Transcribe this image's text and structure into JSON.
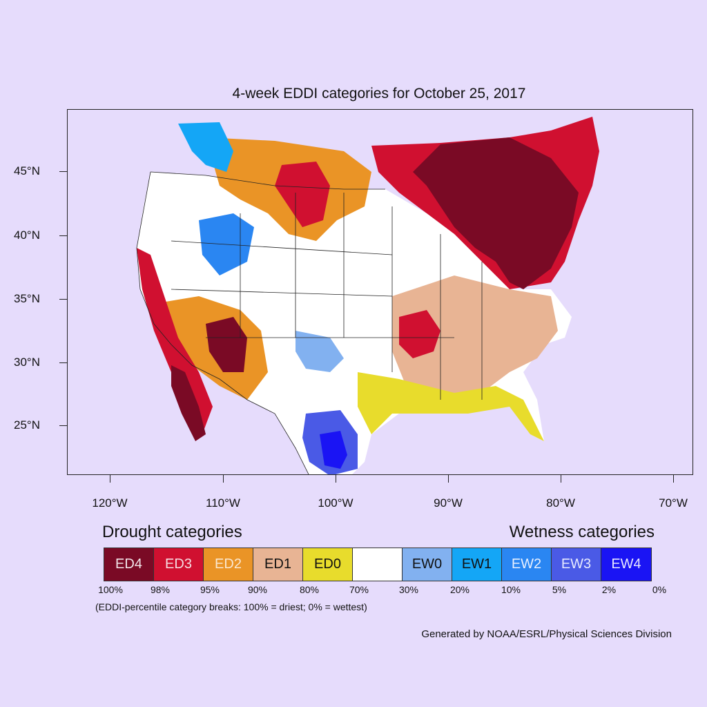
{
  "title": "4-week EDDI categories for October 25, 2017",
  "latitude_labels": [
    "45°N",
    "40°N",
    "35°N",
    "30°N",
    "25°N"
  ],
  "longitude_labels": [
    "120°W",
    "110°W",
    "100°W",
    "90°W",
    "80°W",
    "70°W"
  ],
  "legend": {
    "drought_heading": "Drought categories",
    "wetness_heading": "Wetness categories",
    "categories": [
      {
        "label": "ED4",
        "color": "#7a0a25",
        "text_color": "#f2e6ea"
      },
      {
        "label": "ED3",
        "color": "#d01030",
        "text_color": "#f6dde2"
      },
      {
        "label": "ED2",
        "color": "#ea9426",
        "text_color": "#fbe8d0"
      },
      {
        "label": "ED1",
        "color": "#e8b494",
        "text_color": "#111111"
      },
      {
        "label": "ED0",
        "color": "#e8dc2c",
        "text_color": "#111111"
      },
      {
        "label": "",
        "color": "#ffffff",
        "text_color": "#111111"
      },
      {
        "label": "EW0",
        "color": "#82b1f0",
        "text_color": "#111111"
      },
      {
        "label": "EW1",
        "color": "#14a6f6",
        "text_color": "#111111"
      },
      {
        "label": "EW2",
        "color": "#2a86f2",
        "text_color": "#e8f0ff"
      },
      {
        "label": "EW3",
        "color": "#4a5ae6",
        "text_color": "#e8ebff"
      },
      {
        "label": "EW4",
        "color": "#1a14f4",
        "text_color": "#e8e8ff"
      }
    ],
    "breaks": [
      "100%",
      "98%",
      "95%",
      "90%",
      "80%",
      "70%",
      "30%",
      "20%",
      "10%",
      "5%",
      "2%",
      "0%"
    ],
    "breaks_note": "(EDDI-percentile category breaks: 100% = driest; 0% = wettest)"
  },
  "credit": "Generated by NOAA/ESRL/Physical Sciences Division",
  "map_regions": [
    {
      "name": "northeast-us-great-lakes",
      "category": "ED4"
    },
    {
      "name": "southern-ontario-quebec",
      "category": "ED4"
    },
    {
      "name": "northern-plains",
      "category": "ED3"
    },
    {
      "name": "arizona-new-mexico-border",
      "category": "ED4"
    },
    {
      "name": "california-coast",
      "category": "ED3"
    },
    {
      "name": "baja-california",
      "category": "ED3"
    },
    {
      "name": "mid-south",
      "category": "ED3"
    },
    {
      "name": "southeast",
      "category": "ED1"
    },
    {
      "name": "gulf-coast",
      "category": "ED0"
    },
    {
      "name": "great-basin",
      "category": "none"
    },
    {
      "name": "central-plains",
      "category": "none"
    },
    {
      "name": "south-texas-northeast-mexico",
      "category": "EW3"
    },
    {
      "name": "southern-idaho-utah",
      "category": "EW2"
    },
    {
      "name": "pacific-northwest-interior",
      "category": "EW1"
    },
    {
      "name": "southern-plains-new-mexico",
      "category": "EW0"
    }
  ]
}
